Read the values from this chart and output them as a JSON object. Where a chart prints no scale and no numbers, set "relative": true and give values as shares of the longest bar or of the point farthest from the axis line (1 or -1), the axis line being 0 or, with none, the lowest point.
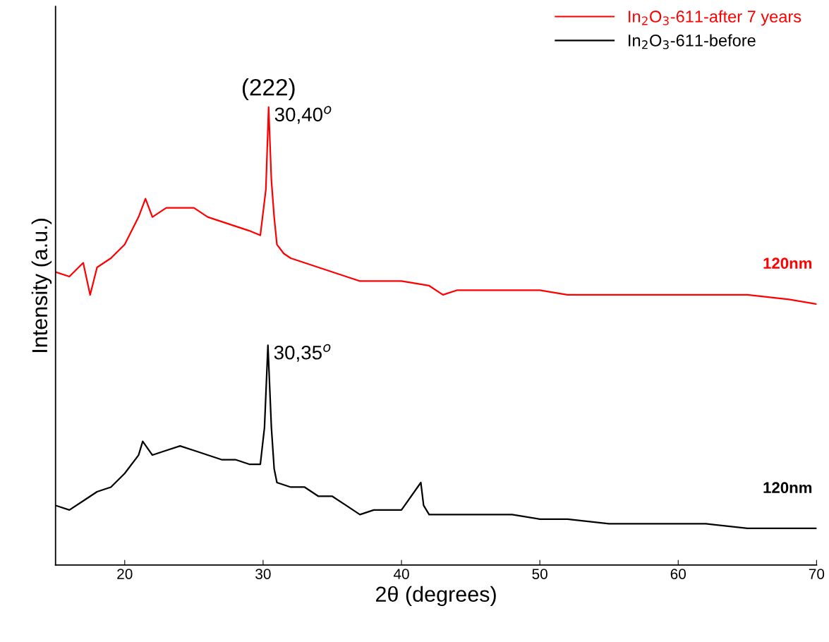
{
  "chart_data": {
    "type": "line",
    "relative": true,
    "xlabel": "2θ (degrees)",
    "ylabel": "Intensity (a.u.)",
    "xlim": [
      15,
      70
    ],
    "xticks": [
      20,
      30,
      40,
      50,
      60,
      70
    ],
    "legend": "top right",
    "tick_labels": "x",
    "grid": false,
    "series": [
      {
        "name": "In$_{2}$O$_{3}$-611-after 7 years",
        "color": "#ff0000",
        "x": [
          15,
          16,
          17,
          17.5,
          18,
          19,
          20,
          21,
          21.5,
          22,
          23,
          24,
          25,
          26,
          27,
          28,
          29,
          29.8,
          30.2,
          30.4,
          30.6,
          30.8,
          31,
          31.5,
          32,
          33,
          34,
          35,
          36,
          37,
          38,
          40,
          42,
          43,
          44,
          46,
          48,
          50,
          52,
          55,
          58,
          60,
          62,
          65,
          68,
          70
        ],
        "values": [
          0.64,
          0.63,
          0.66,
          0.59,
          0.65,
          0.67,
          0.7,
          0.76,
          0.8,
          0.76,
          0.78,
          0.78,
          0.78,
          0.76,
          0.75,
          0.74,
          0.73,
          0.72,
          0.82,
          1,
          0.84,
          0.76,
          0.7,
          0.68,
          0.67,
          0.66,
          0.65,
          0.64,
          0.63,
          0.62,
          0.62,
          0.62,
          0.61,
          0.59,
          0.6,
          0.6,
          0.6,
          0.6,
          0.59,
          0.59,
          0.59,
          0.59,
          0.59,
          0.59,
          0.58,
          0.57
        ]
      },
      {
        "name": "In$_{2}$O$_{3}$-611-before",
        "color": "#000000",
        "x": [
          15,
          16,
          17,
          18,
          19,
          20,
          21,
          21.3,
          22,
          23,
          24,
          25,
          26,
          27,
          28,
          29,
          29.8,
          30.1,
          30.35,
          30.6,
          30.8,
          31,
          32,
          33,
          34,
          35,
          36,
          37,
          38,
          40,
          41.4,
          41.6,
          42,
          44,
          46,
          48,
          50,
          52,
          55,
          58,
          60,
          62,
          65,
          68,
          70
        ],
        "values": [
          0.13,
          0.12,
          0.14,
          0.16,
          0.17,
          0.2,
          0.24,
          0.27,
          0.24,
          0.25,
          0.26,
          0.25,
          0.24,
          0.23,
          0.23,
          0.22,
          0.22,
          0.3,
          0.48,
          0.3,
          0.21,
          0.18,
          0.17,
          0.17,
          0.15,
          0.15,
          0.13,
          0.11,
          0.12,
          0.12,
          0.18,
          0.13,
          0.11,
          0.11,
          0.11,
          0.11,
          0.1,
          0.1,
          0.09,
          0.09,
          0.09,
          0.09,
          0.08,
          0.08,
          0.08
        ]
      }
    ],
    "annotations": [
      "(222)",
      {
        "text": "30,40$^{o}$",
        "x": 30.4,
        "y": 1
      },
      {
        "text": "30,35$^{o}$",
        "x": 30.35,
        "y": 0.48
      },
      "120nm",
      "120nm"
    ]
  }
}
